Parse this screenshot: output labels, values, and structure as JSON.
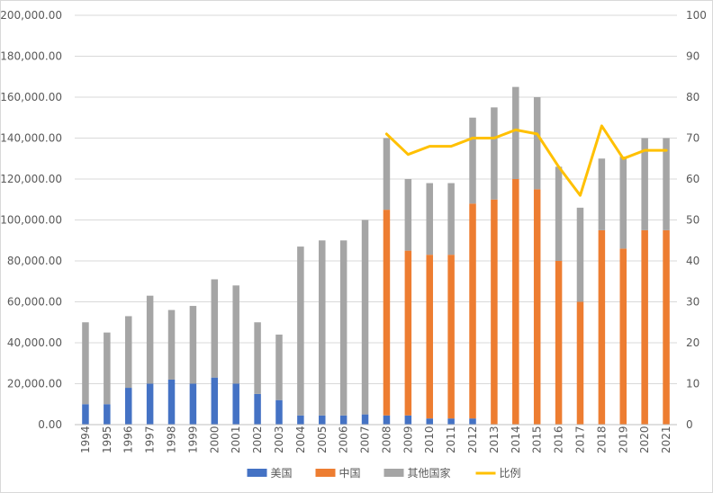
{
  "chart_data": {
    "type": "bar",
    "stacked": true,
    "title": "",
    "xlabel": "",
    "ylabel": "",
    "y2label": "",
    "categories": [
      "1994",
      "1995",
      "1996",
      "1997",
      "1998",
      "1999",
      "2000",
      "2001",
      "2002",
      "2003",
      "2004",
      "2005",
      "2006",
      "2007",
      "2008",
      "2009",
      "2010",
      "2011",
      "2012",
      "2013",
      "2014",
      "2015",
      "2016",
      "2017",
      "2018",
      "2019",
      "2020",
      "2021"
    ],
    "series": [
      {
        "name": "美国",
        "axis": "left",
        "color": "#4472C4",
        "values": [
          10000,
          10000,
          18000,
          20000,
          22000,
          20000,
          23000,
          20000,
          15000,
          12000,
          4500,
          4500,
          4500,
          5000,
          4500,
          4500,
          3000,
          3000,
          3000,
          0,
          0,
          0,
          0,
          0,
          0,
          0,
          0,
          0
        ]
      },
      {
        "name": "中国",
        "axis": "left",
        "color": "#ED7D31",
        "values": [
          0,
          0,
          0,
          0,
          0,
          0,
          0,
          0,
          0,
          0,
          0,
          0,
          0,
          0,
          100500,
          80500,
          80000,
          80000,
          105000,
          110000,
          120000,
          115000,
          80000,
          60000,
          95000,
          86000,
          95000,
          95000
        ]
      },
      {
        "name": "其他国家",
        "axis": "left",
        "color": "#A5A5A5",
        "values": [
          40000,
          35000,
          35000,
          43000,
          34000,
          38000,
          48000,
          48000,
          35000,
          32000,
          82500,
          85500,
          85500,
          95000,
          35000,
          35000,
          35000,
          35000,
          42000,
          45000,
          45000,
          45000,
          46000,
          46000,
          35000,
          45000,
          45000,
          45000
        ]
      },
      {
        "name": "比例",
        "axis": "right",
        "type": "line",
        "color": "#FFC000",
        "values": [
          null,
          null,
          null,
          null,
          null,
          null,
          null,
          null,
          null,
          null,
          null,
          null,
          null,
          null,
          71,
          66,
          68,
          68,
          70,
          70,
          72,
          71,
          63,
          56,
          73,
          65,
          67,
          67
        ]
      }
    ],
    "ylim": [
      0,
      200000
    ],
    "y_ticks": [
      "0.00",
      "20,000.00",
      "40,000.00",
      "60,000.00",
      "80,000.00",
      "100,000.00",
      "120,000.00",
      "140,000.00",
      "160,000.00",
      "180,000.00",
      "200,000.00"
    ],
    "y2lim": [
      0,
      100
    ],
    "y2_ticks": [
      "0",
      "10",
      "20",
      "30",
      "40",
      "50",
      "60",
      "70",
      "80",
      "90",
      "100"
    ],
    "grid": true,
    "legend_position": "bottom"
  }
}
